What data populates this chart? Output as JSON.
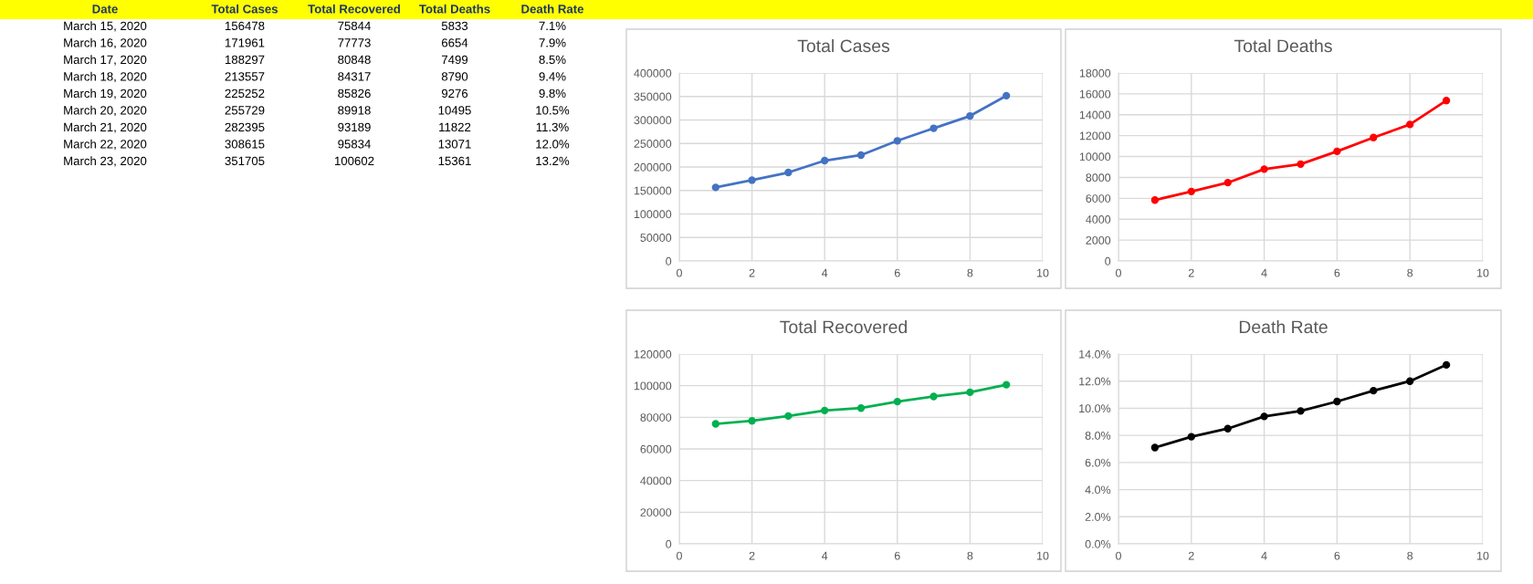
{
  "chart_data": [
    {
      "type": "other",
      "annotations": [
        "Date",
        "Total Cases",
        "Total Recovered",
        "Total Deaths",
        "Death Rate",
        "March 15, 2020",
        "156478",
        "75844",
        "5833",
        "7.1%",
        "March 16, 2020",
        "171961",
        "77773",
        "6654",
        "7.9%",
        "March 17, 2020",
        "188297",
        "80848",
        "7499",
        "8.5%",
        "March 18, 2020",
        "213557",
        "84317",
        "8790",
        "9.4%",
        "March 19, 2020",
        "225252",
        "85826",
        "9276",
        "9.8%",
        "March 20, 2020",
        "255729",
        "89918",
        "10495",
        "10.5%",
        "March 21, 2020",
        "282395",
        "93189",
        "11822",
        "11.3%",
        "March 22, 2020",
        "308615",
        "95834",
        "13071",
        "12.0%",
        "March 23, 2020",
        "351705",
        "100602",
        "15361",
        "13.2%"
      ]
    },
    {
      "type": "line",
      "title": "Total Cases",
      "x": [
        1,
        2,
        3,
        4,
        5,
        6,
        7,
        8,
        9
      ],
      "series": [
        {
          "color": "#4472c4",
          "values": [
            156478,
            171961,
            188297,
            213557,
            225252,
            255729,
            282395,
            308615,
            351705
          ]
        }
      ],
      "xlim": [
        0,
        10
      ],
      "xticks": [
        0,
        2,
        4,
        6,
        8,
        10
      ],
      "ylim": [
        0,
        400000
      ],
      "yticks": [
        0,
        50000,
        100000,
        150000,
        200000,
        250000,
        300000,
        350000,
        400000
      ],
      "grid": true,
      "marker": "circle",
      "line_style": "solid"
    },
    {
      "type": "line",
      "title": "Total Deaths",
      "x": [
        1,
        2,
        3,
        4,
        5,
        6,
        7,
        8,
        9
      ],
      "series": [
        {
          "color": "#ff0000",
          "values": [
            5833,
            6654,
            7499,
            8790,
            9276,
            10495,
            11822,
            13071,
            15361
          ]
        }
      ],
      "xlim": [
        0,
        10
      ],
      "xticks": [
        0,
        2,
        4,
        6,
        8,
        10
      ],
      "ylim": [
        0,
        18000
      ],
      "yticks": [
        0,
        2000,
        4000,
        6000,
        8000,
        10000,
        12000,
        14000,
        16000,
        18000
      ],
      "grid": true,
      "marker": "circle",
      "line_style": "solid"
    },
    {
      "type": "line",
      "title": "Total Recovered",
      "x": [
        1,
        2,
        3,
        4,
        5,
        6,
        7,
        8,
        9
      ],
      "series": [
        {
          "color": "#00b050",
          "values": [
            75844,
            77773,
            80848,
            84317,
            85826,
            89918,
            93189,
            95834,
            100602
          ]
        }
      ],
      "xlim": [
        0,
        10
      ],
      "xticks": [
        0,
        2,
        4,
        6,
        8,
        10
      ],
      "ylim": [
        0,
        120000
      ],
      "yticks": [
        0,
        20000,
        40000,
        60000,
        80000,
        100000,
        120000
      ],
      "grid": true,
      "marker": "circle",
      "line_style": "solid"
    },
    {
      "type": "line",
      "title": "Death Rate",
      "x": [
        1,
        2,
        3,
        4,
        5,
        6,
        7,
        8,
        9
      ],
      "series": [
        {
          "color": "#000000",
          "values": [
            7.1,
            7.9,
            8.5,
            9.4,
            9.8,
            10.5,
            11.3,
            12.0,
            13.2
          ]
        }
      ],
      "xlim": [
        0,
        10
      ],
      "xticks": [
        0,
        2,
        4,
        6,
        8,
        10
      ],
      "ylim": [
        0,
        14
      ],
      "yticks": [
        {
          "value": 0,
          "label": "0.0%"
        },
        {
          "value": 2,
          "label": "2.0%"
        },
        {
          "value": 4,
          "label": "4.0%"
        },
        {
          "value": 6,
          "label": "6.0%"
        },
        {
          "value": 8,
          "label": "8.0%"
        },
        {
          "value": 10,
          "label": "10.0%"
        },
        {
          "value": 12,
          "label": "12.0%"
        },
        {
          "value": 14,
          "label": "14.0%"
        }
      ],
      "grid": true,
      "marker": "circle",
      "line_style": "solid"
    }
  ]
}
